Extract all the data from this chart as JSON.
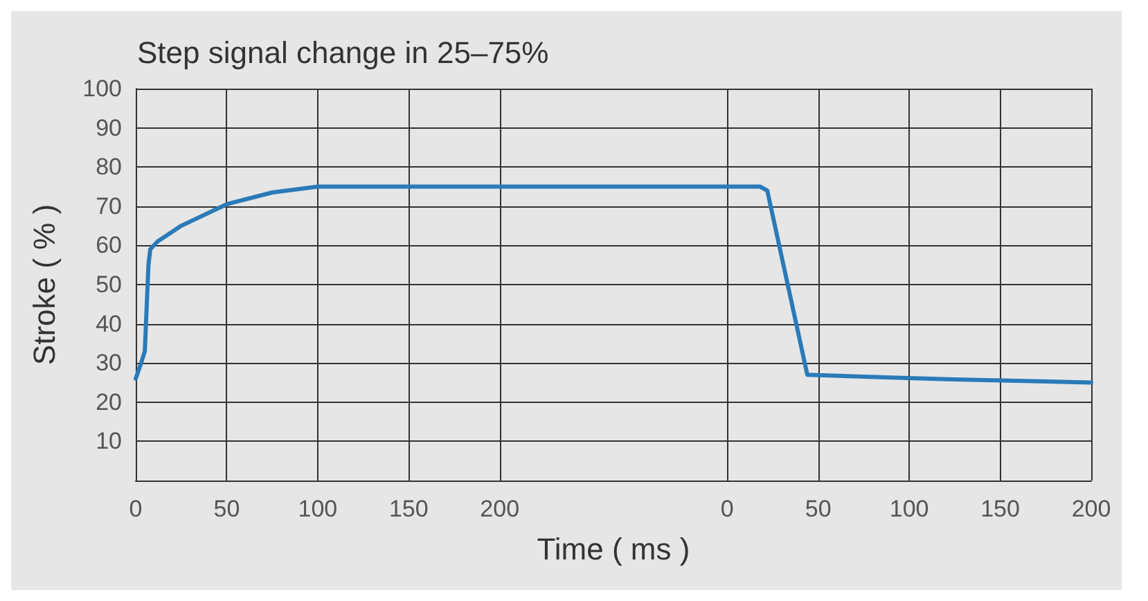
{
  "chart_data": [
    {
      "type": "line",
      "title": "Step signal change in 25–75%",
      "xlabel": "Time ( ms )",
      "ylabel": "Stroke ( % )",
      "xlim": [
        0,
        262.5
      ],
      "xticks": [
        0,
        50,
        100,
        150,
        200
      ],
      "ylim": [
        0,
        100
      ],
      "yticks": [
        10,
        20,
        30,
        40,
        50,
        60,
        70,
        80,
        90,
        100
      ],
      "grid": true,
      "marker": "none",
      "line_style": "solid",
      "series": [
        {
          "color": "#2a7ab8",
          "x": [
            0,
            3,
            5,
            7,
            8,
            12,
            25,
            50,
            75,
            100,
            200,
            262.5
          ],
          "values": [
            26,
            30,
            33,
            55,
            59,
            61,
            65,
            70.5,
            73.5,
            75,
            75,
            75
          ]
        }
      ]
    },
    {
      "type": "line",
      "xlim": [
        -62.5,
        200
      ],
      "xticks": [
        0,
        50,
        100,
        150,
        200
      ],
      "ylim": [
        0,
        100
      ],
      "yticks": [
        10,
        20,
        30,
        40,
        50,
        60,
        70,
        80,
        90,
        100
      ],
      "tick_labels": "x",
      "grid": true,
      "marker": "none",
      "line_style": "solid",
      "series": [
        {
          "color": "#2a7ab8",
          "x": [
            -62.5,
            18,
            22,
            44,
            75,
            125,
            200
          ],
          "values": [
            75,
            75,
            74,
            27,
            26.5,
            25.8,
            25
          ]
        }
      ]
    }
  ]
}
